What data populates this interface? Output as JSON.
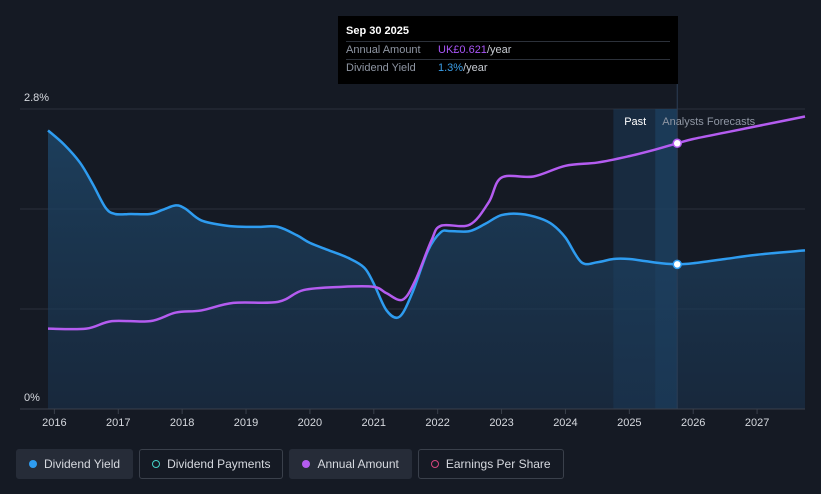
{
  "tooltip": {
    "date": "Sep 30 2025",
    "rows": [
      {
        "label": "Annual Amount",
        "value": "UK£0.621",
        "unit": "/year",
        "color": "#a855f7"
      },
      {
        "label": "Dividend Yield",
        "value": "1.3%",
        "unit": "/year",
        "color": "#3b9fe8"
      }
    ]
  },
  "legend": [
    {
      "label": "Dividend Yield",
      "color": "#2e9cf0",
      "filled": true,
      "active": true
    },
    {
      "label": "Dividend Payments",
      "color": "#44d2c7",
      "filled": false,
      "active": false
    },
    {
      "label": "Annual Amount",
      "color": "#b45cf0",
      "filled": true,
      "active": true
    },
    {
      "label": "Earnings Per Share",
      "color": "#d6457e",
      "filled": false,
      "active": false
    }
  ],
  "chart_data": {
    "type": "line",
    "x_tick_labels": [
      "2016",
      "2017",
      "2018",
      "2019",
      "2020",
      "2021",
      "2022",
      "2023",
      "2024",
      "2025",
      "2026",
      "2027"
    ],
    "y_tick_labels": [
      "2.8%",
      "0%"
    ],
    "ylim": [
      0,
      2.8
    ],
    "xlim": [
      2015.9,
      2027.75
    ],
    "region_labels": {
      "past": "Past",
      "forecast": "Analysts Forecasts"
    },
    "highlight_x": 2025.75,
    "past_band": [
      2024.75,
      2025.75
    ],
    "series": [
      {
        "name": "Dividend Yield",
        "color": "#2e9cf0",
        "fill": true,
        "points": [
          [
            2015.9,
            2.6
          ],
          [
            2016.15,
            2.47
          ],
          [
            2016.4,
            2.3
          ],
          [
            2016.6,
            2.1
          ],
          [
            2016.8,
            1.88
          ],
          [
            2016.95,
            1.82
          ],
          [
            2017.2,
            1.82
          ],
          [
            2017.5,
            1.82
          ],
          [
            2017.7,
            1.86
          ],
          [
            2017.9,
            1.9
          ],
          [
            2018.05,
            1.87
          ],
          [
            2018.3,
            1.76
          ],
          [
            2018.7,
            1.71
          ],
          [
            2019.0,
            1.7
          ],
          [
            2019.2,
            1.7
          ],
          [
            2019.5,
            1.7
          ],
          [
            2019.8,
            1.62
          ],
          [
            2020.0,
            1.55
          ],
          [
            2020.3,
            1.48
          ],
          [
            2020.6,
            1.41
          ],
          [
            2020.85,
            1.32
          ],
          [
            2021.0,
            1.17
          ],
          [
            2021.2,
            0.92
          ],
          [
            2021.4,
            0.86
          ],
          [
            2021.6,
            1.08
          ],
          [
            2021.85,
            1.48
          ],
          [
            2022.05,
            1.65
          ],
          [
            2022.2,
            1.66
          ],
          [
            2022.5,
            1.66
          ],
          [
            2022.75,
            1.73
          ],
          [
            2023.0,
            1.81
          ],
          [
            2023.3,
            1.82
          ],
          [
            2023.6,
            1.78
          ],
          [
            2023.8,
            1.72
          ],
          [
            2024.0,
            1.6
          ],
          [
            2024.25,
            1.37
          ],
          [
            2024.5,
            1.37
          ],
          [
            2024.75,
            1.4
          ],
          [
            2025.0,
            1.4
          ],
          [
            2025.25,
            1.38
          ],
          [
            2025.5,
            1.36
          ],
          [
            2025.75,
            1.35
          ],
          [
            2026.0,
            1.36
          ],
          [
            2026.5,
            1.4
          ],
          [
            2027.0,
            1.44
          ],
          [
            2027.75,
            1.48
          ]
        ]
      },
      {
        "name": "Annual Amount",
        "color": "#b45cf0",
        "fill": false,
        "points": [
          [
            2015.9,
            0.75
          ],
          [
            2016.5,
            0.75
          ],
          [
            2016.9,
            0.82
          ],
          [
            2017.5,
            0.82
          ],
          [
            2017.9,
            0.9
          ],
          [
            2018.3,
            0.92
          ],
          [
            2018.8,
            0.99
          ],
          [
            2019.5,
            1.0
          ],
          [
            2019.9,
            1.11
          ],
          [
            2020.5,
            1.14
          ],
          [
            2021.0,
            1.14
          ],
          [
            2021.2,
            1.08
          ],
          [
            2021.45,
            1.02
          ],
          [
            2021.65,
            1.2
          ],
          [
            2021.9,
            1.57
          ],
          [
            2022.05,
            1.71
          ],
          [
            2022.5,
            1.72
          ],
          [
            2022.8,
            1.93
          ],
          [
            2023.0,
            2.16
          ],
          [
            2023.5,
            2.17
          ],
          [
            2024.0,
            2.27
          ],
          [
            2024.5,
            2.3
          ],
          [
            2025.0,
            2.36
          ],
          [
            2025.4,
            2.42
          ],
          [
            2025.75,
            2.48
          ],
          [
            2026.0,
            2.52
          ],
          [
            2026.5,
            2.58
          ],
          [
            2027.0,
            2.64
          ],
          [
            2027.75,
            2.73
          ]
        ]
      }
    ]
  }
}
